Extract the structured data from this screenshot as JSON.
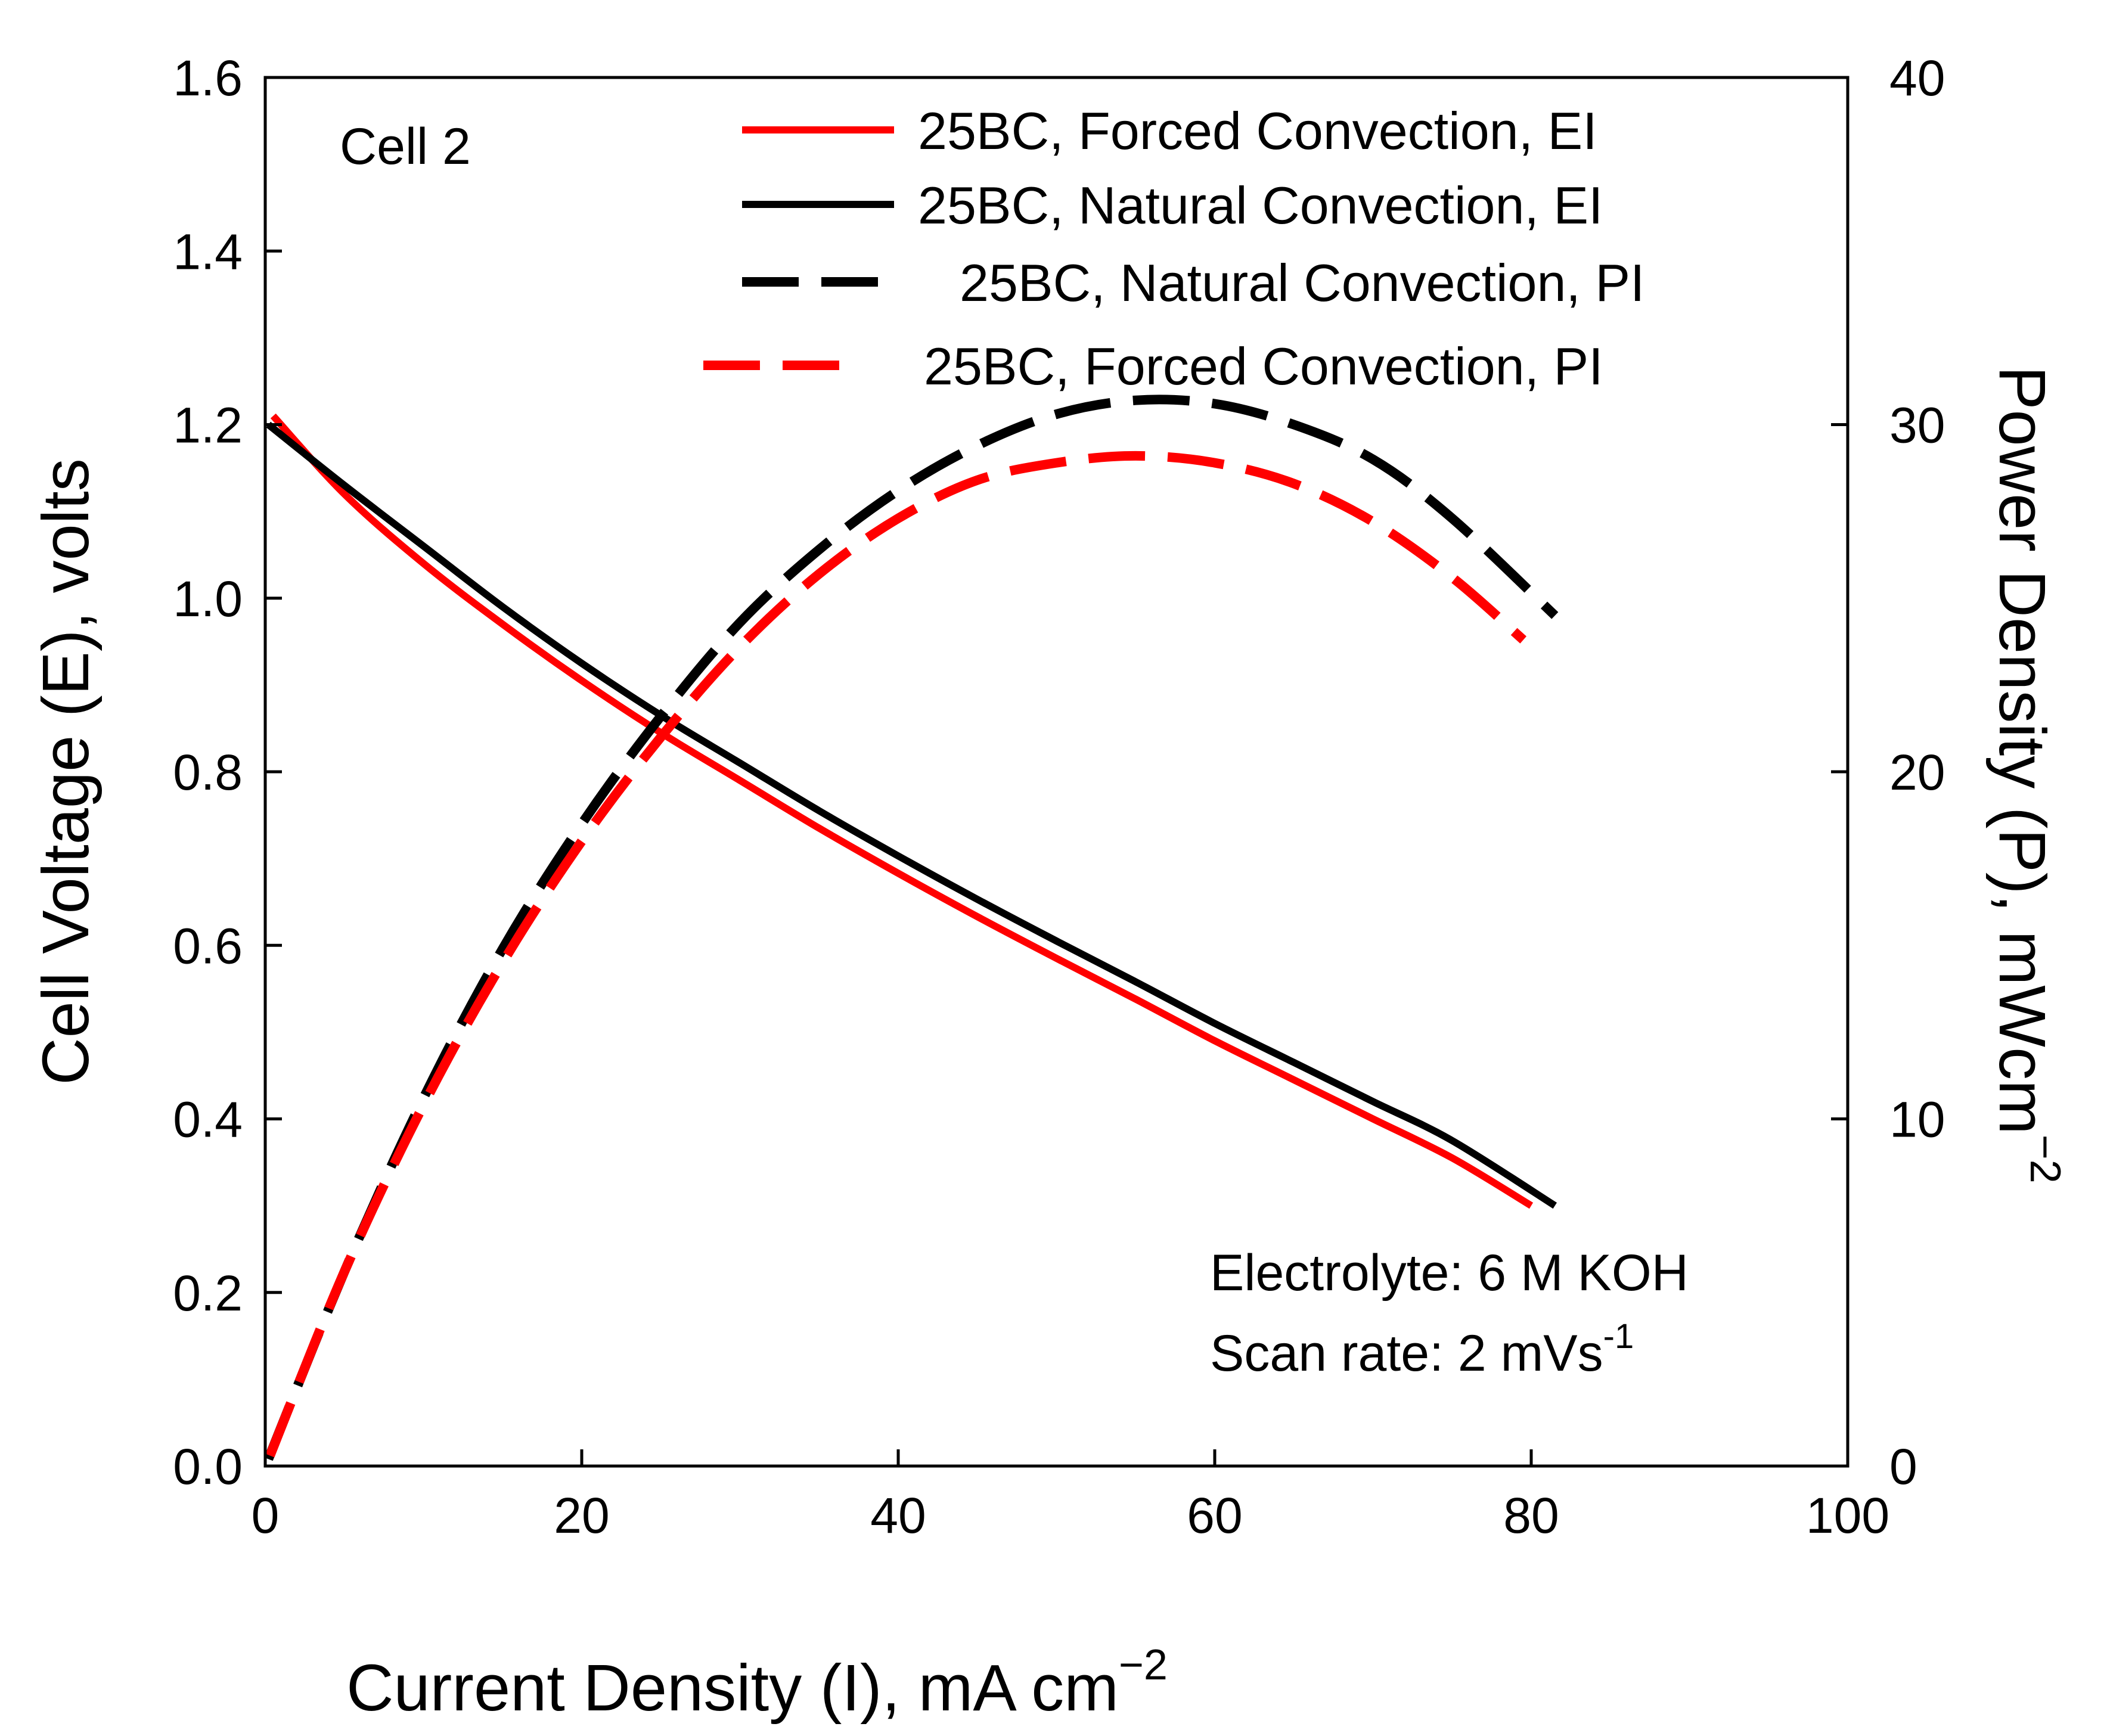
{
  "chart_data": {
    "type": "line",
    "title": "",
    "xlabel": "Current Density (I), mA cm",
    "xlabel_sup": "−2",
    "ylabel_left": "Cell Voltage (E), volts",
    "ylabel_right": "Power Density (P), mWcm",
    "ylabel_right_sup": "−2",
    "xlim": [
      0,
      100
    ],
    "ylim_left": [
      0,
      1.6
    ],
    "ylim_right": [
      0,
      40
    ],
    "x_ticks": [
      "0",
      "20",
      "40",
      "60",
      "80",
      "100"
    ],
    "y_left_ticks": [
      "0.0",
      "0.2",
      "0.4",
      "0.6",
      "0.8",
      "1.0",
      "1.2",
      "1.4",
      "1.6"
    ],
    "y_right_ticks": [
      "0",
      "10",
      "20",
      "30",
      "40"
    ],
    "annotation_cell": "Cell 2",
    "annotation_electrolyte": "Electrolyte: 6 M KOH",
    "annotation_scan": "Scan rate: 2 mVs",
    "annotation_scan_sup": "-1",
    "colors": {
      "red": "#ff0000",
      "black": "#000000"
    },
    "series": [
      {
        "name": "25BC, Forced Convection, EI",
        "axis": "left",
        "color": "#ff0000",
        "dash": "solid",
        "x": [
          0.5,
          5,
          10,
          15,
          20,
          25,
          30,
          35,
          40,
          45,
          50,
          55,
          60,
          65,
          70,
          75,
          80
        ],
        "y": [
          1.21,
          1.12,
          1.04,
          0.97,
          0.905,
          0.845,
          0.79,
          0.735,
          0.683,
          0.633,
          0.585,
          0.538,
          0.49,
          0.445,
          0.4,
          0.355,
          0.3
        ]
      },
      {
        "name": "25BC, Natural Convection, EI",
        "axis": "left",
        "color": "#000000",
        "dash": "solid",
        "x": [
          0.2,
          5,
          10,
          15,
          20,
          25,
          30,
          35,
          40,
          45,
          50,
          55,
          60,
          65,
          70,
          75,
          81.5
        ],
        "y": [
          1.2,
          1.13,
          1.06,
          0.99,
          0.925,
          0.865,
          0.81,
          0.755,
          0.703,
          0.653,
          0.605,
          0.558,
          0.51,
          0.465,
          0.42,
          0.375,
          0.3
        ]
      },
      {
        "name": "25BC, Natural Convection, PI",
        "axis": "right",
        "color": "#000000",
        "dash": "dashed",
        "x": [
          0.2,
          5,
          10,
          15,
          20,
          25,
          30,
          35,
          40,
          45,
          50,
          55,
          60,
          65,
          70,
          75,
          81.5
        ],
        "y": [
          0.2,
          5.6,
          10.6,
          14.9,
          18.5,
          21.6,
          24.3,
          26.4,
          28.1,
          29.4,
          30.3,
          30.7,
          30.6,
          30.0,
          29.0,
          27.3,
          24.5
        ]
      },
      {
        "name": "25BC, Forced Convection, PI",
        "axis": "right",
        "color": "#ff0000",
        "dash": "dashed",
        "x": [
          0.3,
          5,
          10,
          15,
          20,
          25,
          30,
          35,
          40,
          45,
          50,
          55,
          60,
          65,
          70,
          75,
          79.5
        ],
        "y": [
          0.3,
          5.6,
          10.4,
          14.5,
          18.0,
          21.0,
          23.6,
          25.7,
          27.3,
          28.4,
          28.9,
          29.1,
          28.9,
          28.3,
          27.2,
          25.6,
          23.8
        ]
      }
    ],
    "legend": [
      {
        "label": "25BC, Forced Convection, EI",
        "color": "#ff0000",
        "dash": "solid"
      },
      {
        "label": "25BC, Natural Convection, EI",
        "color": "#000000",
        "dash": "solid"
      },
      {
        "label": "25BC, Natural Convection, PI",
        "color": "#000000",
        "dash": "dashed"
      },
      {
        "label": "25BC, Forced Convection, PI",
        "color": "#ff0000",
        "dash": "dashed"
      }
    ]
  }
}
